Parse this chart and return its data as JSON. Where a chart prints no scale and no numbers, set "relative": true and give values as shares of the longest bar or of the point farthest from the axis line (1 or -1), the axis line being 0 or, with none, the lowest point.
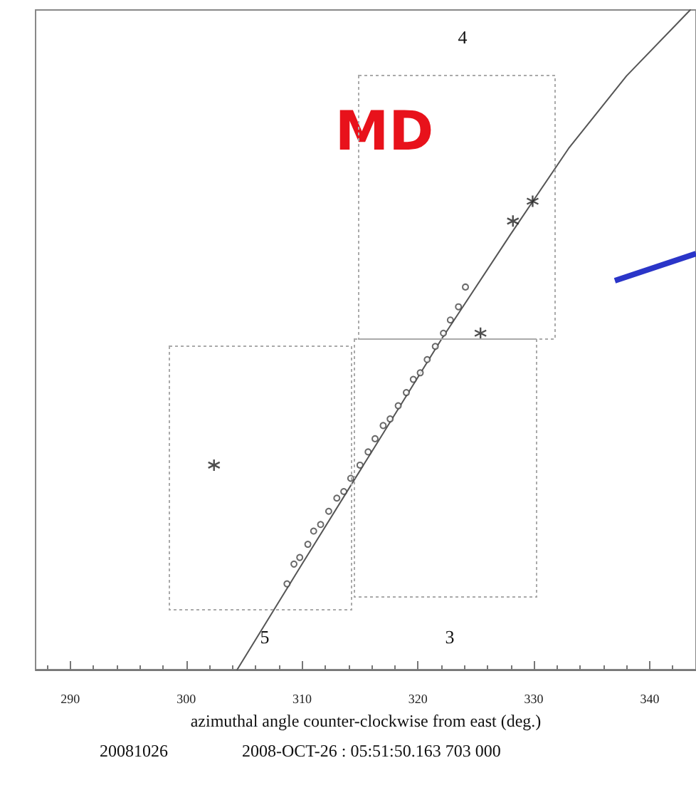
{
  "chart_data": {
    "type": "scatter",
    "title": "MD",
    "xlabel": "azimuthal angle counter-clockwise from east (deg.)",
    "relative": true,
    "xlim": [
      287,
      344
    ],
    "xticks": [
      290,
      300,
      310,
      320,
      330,
      340
    ],
    "grid": false,
    "annotations": [
      "5",
      "3",
      "4",
      "20081026",
      "2008-OCT-26 : 05:51:50.163 703 000"
    ],
    "series": [
      {
        "type": "line",
        "color": "#555555",
        "marker": "none",
        "x": [
          304.4,
          310,
          316,
          322,
          328,
          333,
          338,
          343.5
        ],
        "values": [
          0,
          0.16,
          0.33,
          0.5,
          0.66,
          0.79,
          0.9,
          1
        ]
      },
      {
        "color": "#444444",
        "marker": "circle",
        "x": [
          308.7,
          309.3,
          309.8,
          310.5,
          311.0,
          311.6,
          312.3,
          313.0,
          313.6,
          314.2,
          315.0,
          315.7,
          316.3,
          317.0,
          317.6,
          318.3,
          319.0,
          319.6,
          320.2,
          320.8,
          321.5,
          322.2,
          322.8,
          323.5,
          324.1
        ],
        "values": [
          0.13,
          0.16,
          0.17,
          0.19,
          0.21,
          0.22,
          0.24,
          0.26,
          0.27,
          0.29,
          0.31,
          0.33,
          0.35,
          0.37,
          0.38,
          0.4,
          0.42,
          0.44,
          0.45,
          0.47,
          0.49,
          0.51,
          0.53,
          0.55,
          0.58
        ]
      },
      {
        "color": "#222222",
        "marker": "cross",
        "x": [
          302.4,
          325.4,
          328.2,
          329.9
        ],
        "values": [
          0.31,
          0.51,
          0.68,
          0.71
        ]
      }
    ]
  }
}
